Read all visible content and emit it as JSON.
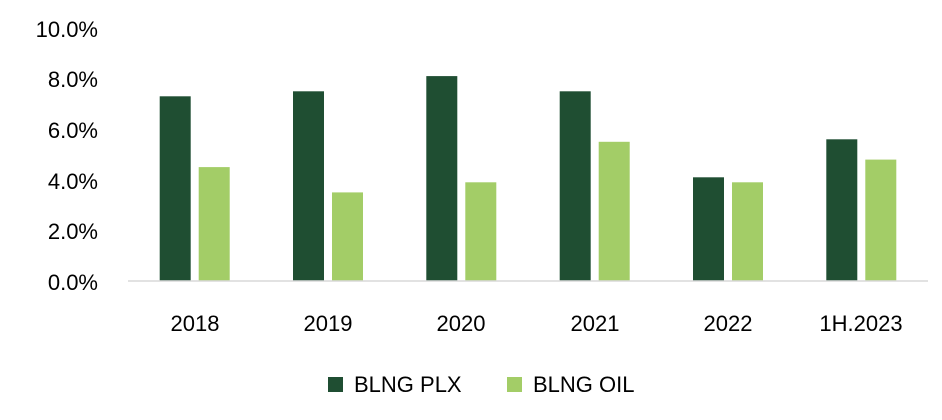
{
  "chart_data": {
    "type": "bar",
    "title": "",
    "xlabel": "",
    "ylabel": "",
    "categories": [
      "2018",
      "2019",
      "2020",
      "2021",
      "2022",
      "1H.2023"
    ],
    "series": [
      {
        "name": "BLNG PLX",
        "color": "#1f4e32",
        "values": [
          7.3,
          7.5,
          8.1,
          7.5,
          4.1,
          5.6
        ]
      },
      {
        "name": "BLNG OIL",
        "color": "#a3cd67",
        "values": [
          4.5,
          3.5,
          3.9,
          5.5,
          3.9,
          4.8
        ]
      }
    ],
    "ylim": [
      0,
      10
    ],
    "yticks": [
      "0.0%",
      "2.0%",
      "4.0%",
      "6.0%",
      "8.0%",
      "10.0%"
    ],
    "grid": false,
    "legend_position": "bottom"
  }
}
